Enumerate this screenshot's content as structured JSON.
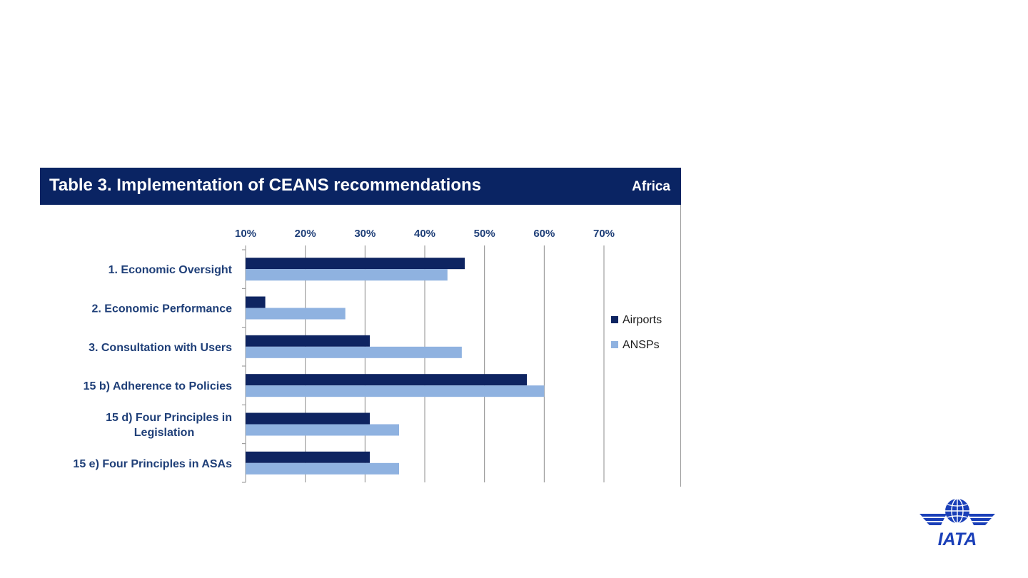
{
  "header": {
    "title": "Table 3. Implementation of CEANS recommendations",
    "region": "Africa"
  },
  "colors": {
    "header_bg": "#0a2463",
    "airports": "#0e2461",
    "ansps": "#8fb2e0",
    "axis_text": "#1f3f78",
    "grid": "#8c8c8c"
  },
  "chart_data": {
    "type": "bar",
    "orientation": "horizontal",
    "title": "",
    "xlabel": "",
    "ylabel": "",
    "xlim": [
      10,
      70
    ],
    "x_ticks": [
      "10%",
      "20%",
      "30%",
      "40%",
      "50%",
      "60%",
      "70%"
    ],
    "x_axis_position": "top",
    "grid": true,
    "legend_position": "right",
    "categories": [
      "1. Economic Oversight",
      "2. Economic Performance",
      "3. Consultation with Users",
      "15 b) Adherence to Policies",
      "15 d) Four Principles in Legislation",
      "15 e) Four Principles in ASAs"
    ],
    "category_lines": [
      [
        "1. Economic Oversight"
      ],
      [
        "2. Economic Performance"
      ],
      [
        "3. Consultation with Users"
      ],
      [
        "15 b) Adherence to Policies"
      ],
      [
        "15 d) Four Principles in",
        "Legislation"
      ],
      [
        "15 e) Four Principles in ASAs"
      ]
    ],
    "series": [
      {
        "name": "Airports",
        "values": [
          46.7,
          13.3,
          30.8,
          57.1,
          30.8,
          30.8
        ]
      },
      {
        "name": "ANSPs",
        "values": [
          43.8,
          26.7,
          46.2,
          60.0,
          35.7,
          35.7
        ]
      }
    ]
  },
  "logo": {
    "text": "IATA"
  }
}
